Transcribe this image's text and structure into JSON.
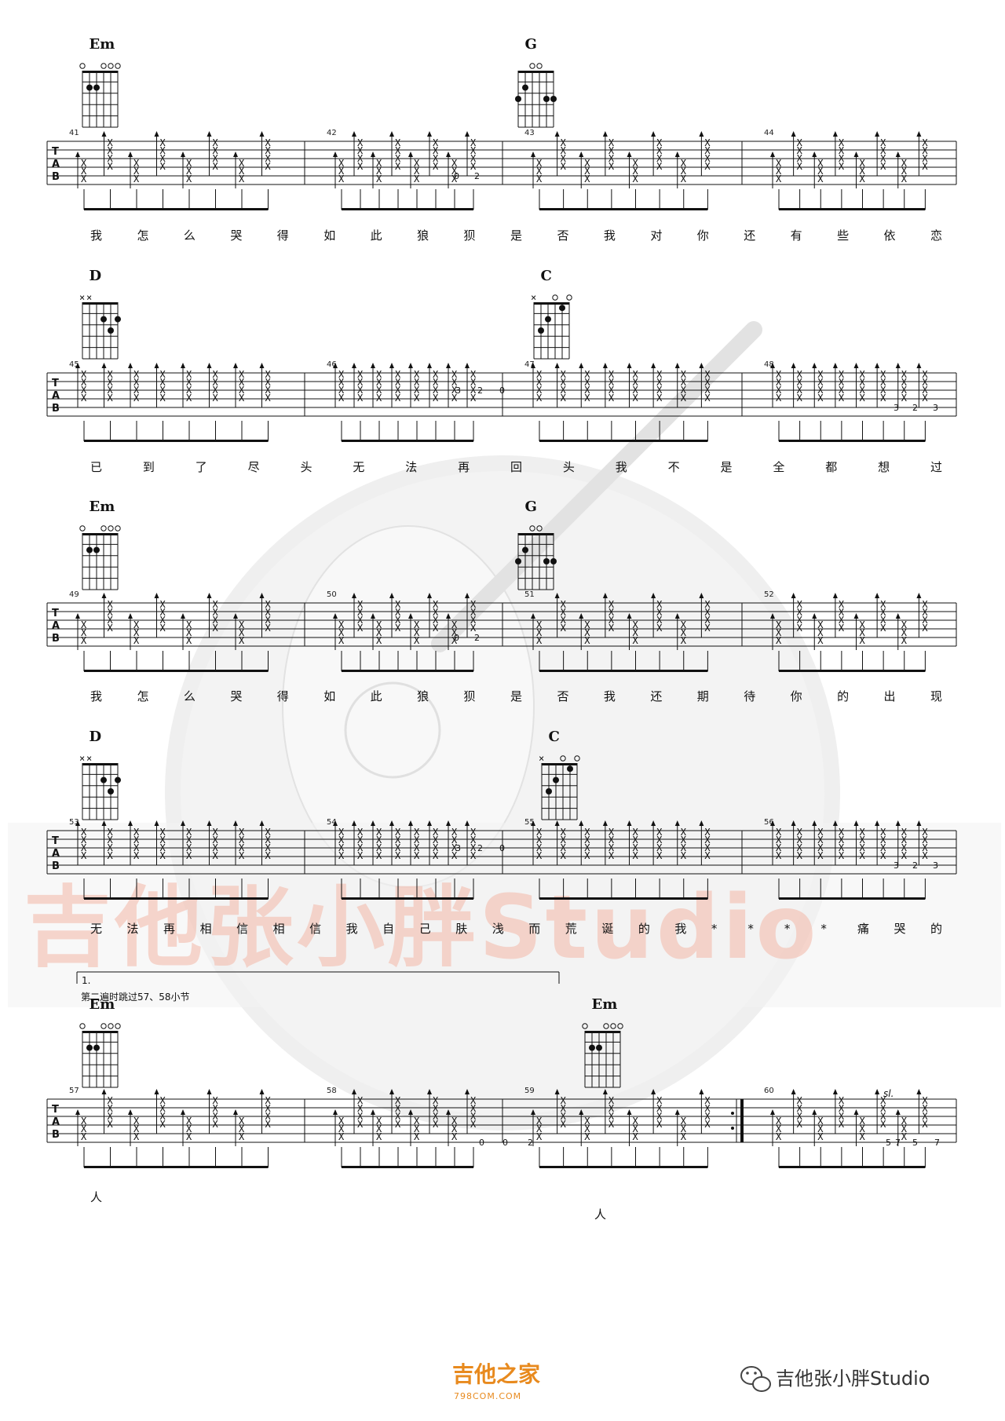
{
  "systems": [
    {
      "chords": [
        {
          "name": "Em",
          "shape": "Em"
        },
        {
          "name": "G",
          "shape": "G"
        }
      ],
      "measure_numbers": [
        "41",
        "42",
        "43",
        "44"
      ],
      "lyrics": [
        "我",
        "怎",
        "么",
        "哭",
        "得",
        "如",
        "此",
        "狼",
        "狈",
        "是",
        "否",
        "我",
        "对",
        "你",
        "还",
        "有",
        "些",
        "依",
        "恋"
      ]
    },
    {
      "chords": [
        {
          "name": "D",
          "shape": "D"
        },
        {
          "name": "C",
          "shape": "C"
        }
      ],
      "measure_numbers": [
        "45",
        "46",
        "47",
        "48"
      ],
      "lyrics": [
        "已",
        "到",
        "了",
        "尽",
        "头",
        "无",
        "法",
        "再",
        "回",
        "头",
        "我",
        "不",
        "是",
        "全",
        "都",
        "想",
        "过"
      ]
    },
    {
      "chords": [
        {
          "name": "Em",
          "shape": "Em"
        },
        {
          "name": "G",
          "shape": "G"
        }
      ],
      "measure_numbers": [
        "49",
        "50",
        "51",
        "52"
      ],
      "lyrics": [
        "我",
        "怎",
        "么",
        "哭",
        "得",
        "如",
        "此",
        "狼",
        "狈",
        "是",
        "否",
        "我",
        "还",
        "期",
        "待",
        "你",
        "的",
        "出",
        "现"
      ]
    },
    {
      "chords": [
        {
          "name": "D",
          "shape": "D"
        },
        {
          "name": "C",
          "shape": "C"
        }
      ],
      "measure_numbers": [
        "53",
        "54",
        "55",
        "56"
      ],
      "lyrics": [
        "无",
        "法",
        "再",
        "相",
        "信",
        "相",
        "信",
        "我",
        "自",
        "己",
        "肤",
        "浅",
        "而",
        "荒",
        "诞",
        "的",
        "我",
        "*",
        "*",
        "*",
        "*",
        "痛",
        "哭",
        "的"
      ]
    },
    {
      "chords": [
        {
          "name": "Em",
          "shape": "Em"
        },
        {
          "name": "Em",
          "shape": "Em"
        }
      ],
      "measure_numbers": [
        "57",
        "58",
        "59",
        "60"
      ],
      "lyrics": [
        "人",
        "人"
      ]
    }
  ],
  "tab_letters": [
    "T",
    "A",
    "B"
  ],
  "volta": {
    "label": "1.",
    "note": "第二遍时跳过57、58小节"
  },
  "slide_mark": "sl.",
  "fret_numbers": {
    "m42": [
      "0",
      "2"
    ],
    "m46": [
      "3",
      "2",
      "0"
    ],
    "m48": [
      "3",
      "2",
      "3"
    ],
    "m50": [
      "0",
      "2"
    ],
    "m54": [
      "3",
      "2",
      "0"
    ],
    "m56": [
      "3",
      "2",
      "3"
    ],
    "m58": [
      "0",
      "0",
      "2"
    ],
    "m60": [
      "5",
      "7",
      "5",
      "7"
    ]
  },
  "watermark": {
    "text": "吉他张小胖Studio"
  },
  "footer": {
    "brand": "吉他之家",
    "url": "798COM.COM",
    "wechat": "吉他张小胖Studio"
  },
  "colors": {
    "watermark": "#f4b8a8",
    "footer_brand": "#e88a1e",
    "logo_gray": "#ececec"
  },
  "icons": [
    "guitar-logo-watermark",
    "wechat-icon"
  ]
}
